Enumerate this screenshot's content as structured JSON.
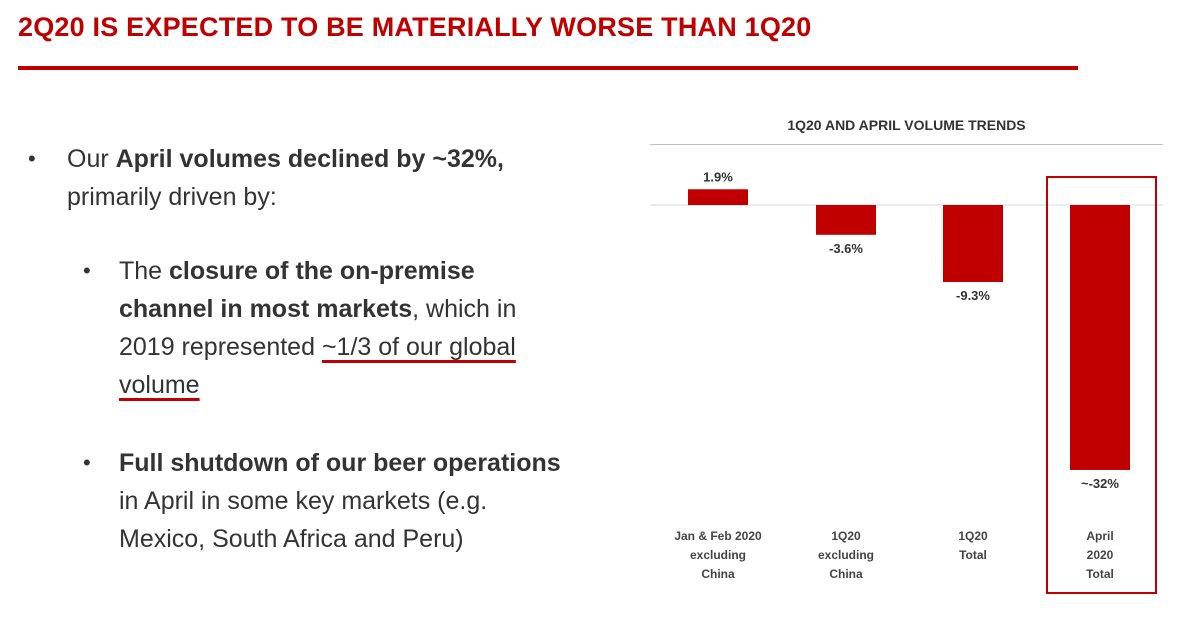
{
  "page": {
    "title": "2Q20 IS EXPECTED TO BE MATERIALLY WORSE THAN 1Q20"
  },
  "bullets": {
    "b1": {
      "pre": "Our ",
      "bold": "April volumes declined by ~32%,",
      "post": " primarily driven by:"
    },
    "b2": {
      "pre": "The ",
      "bold": "closure of the on-premise channel in most markets",
      "mid": ", which in 2019 represented ",
      "underlined": "~1/3 of our global volume"
    },
    "b3": {
      "bold": "Full shutdown of our beer operations",
      "post": " in April in some key markets (e.g. Mexico, South Africa and Peru)"
    },
    "bullet_char": "•"
  },
  "chart_data": {
    "type": "bar",
    "title": "1Q20 AND APRIL VOLUME TRENDS",
    "categories": [
      [
        "Jan & Feb 2020",
        "excluding",
        "China"
      ],
      [
        "1Q20",
        "excluding",
        "China"
      ],
      [
        "1Q20",
        "Total"
      ],
      [
        "April",
        "2020",
        "Total"
      ]
    ],
    "values": [
      1.9,
      -3.6,
      -9.3,
      -32
    ],
    "data_labels": [
      "1.9%",
      "-3.6%",
      "-9.3%",
      "~-32%"
    ],
    "highlighted_category_index": 3,
    "bar_color": "#c00000",
    "xlabel": "",
    "ylabel": ""
  }
}
